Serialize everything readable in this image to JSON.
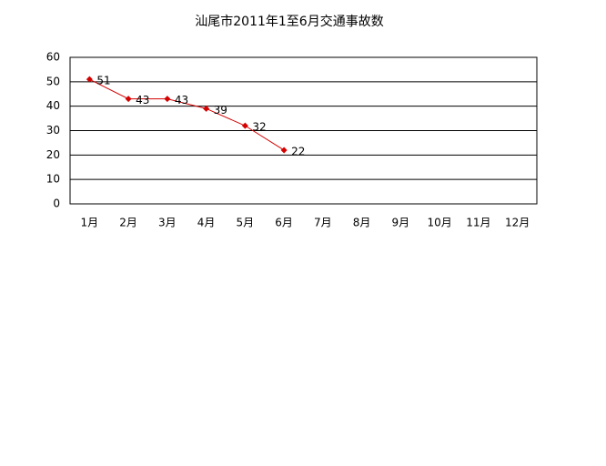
{
  "chart_data": {
    "type": "line",
    "title": "汕尾市2011年1至6月交通事故数",
    "categories": [
      "1月",
      "2月",
      "3月",
      "4月",
      "5月",
      "6月",
      "7月",
      "8月",
      "9月",
      "10月",
      "11月",
      "12月"
    ],
    "values": [
      51,
      43,
      43,
      39,
      32,
      22,
      null,
      null,
      null,
      null,
      null,
      null
    ],
    "color": "#d40000",
    "ylim": [
      0,
      60
    ],
    "yticks": [
      0,
      10,
      20,
      30,
      40,
      50,
      60
    ],
    "grid": true
  }
}
